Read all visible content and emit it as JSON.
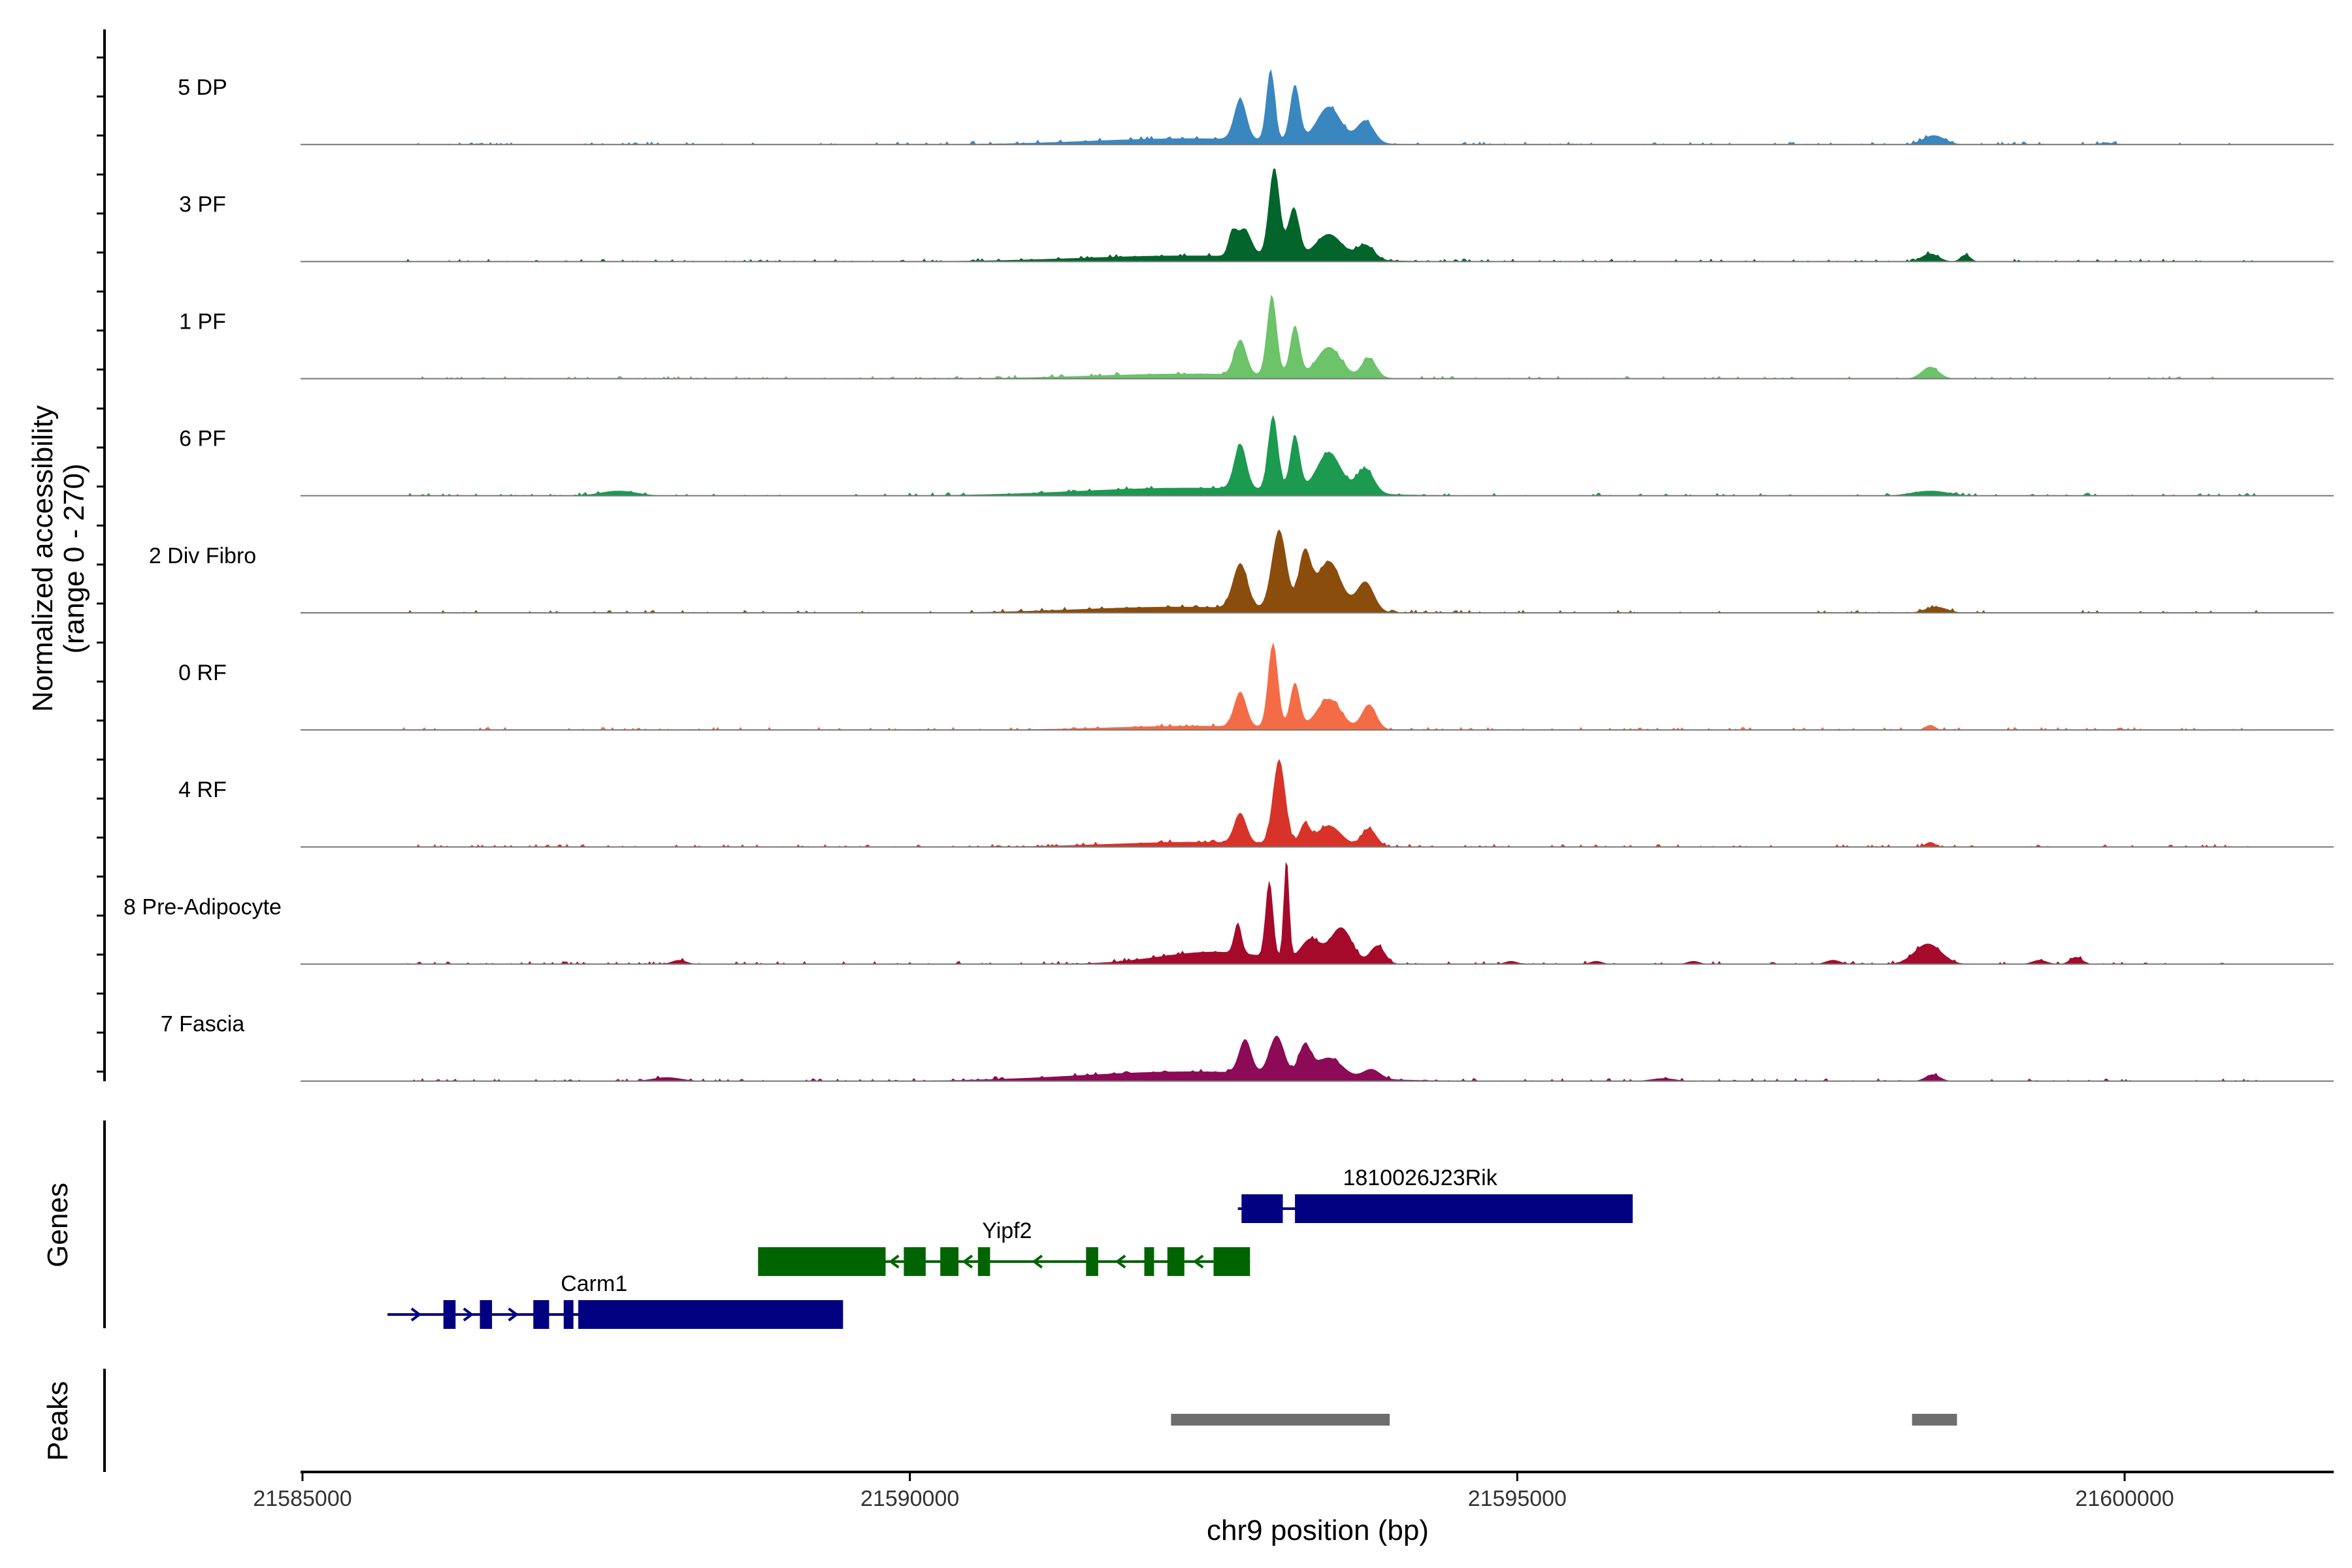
{
  "chart_data": {
    "type": "area",
    "title": "",
    "xlabel": "chr9 position (bp)",
    "ylabel": "Normalized accessibility",
    "ylabel_sub": "(range 0 - 270)",
    "ylim": [
      0,
      270
    ],
    "xlim": [
      21585000,
      21602000
    ],
    "xticks": [
      21585000,
      21590000,
      21595000,
      21600000
    ],
    "xtick_labels": [
      "21585000",
      "21590000",
      "21595000",
      "21600000"
    ],
    "tracks": [
      {
        "name": "5 DP",
        "color": "#3A87C0",
        "scale": 0.9,
        "peaks": [
          [
            21592300,
            800,
            0.06
          ],
          [
            21592720,
            50,
            0.4
          ],
          [
            21592970,
            35,
            0.7
          ],
          [
            21593170,
            40,
            0.55
          ],
          [
            21593450,
            100,
            0.35
          ],
          [
            21593750,
            70,
            0.22
          ],
          [
            21598430,
            90,
            0.09
          ],
          [
            21599850,
            50,
            0.02
          ]
        ]
      },
      {
        "name": "3 PF",
        "color": "#03652B",
        "scale": 0.88,
        "peaks": [
          [
            21592300,
            900,
            0.06
          ],
          [
            21592650,
            30,
            0.2
          ],
          [
            21592750,
            60,
            0.28
          ],
          [
            21593000,
            45,
            0.9
          ],
          [
            21593160,
            45,
            0.5
          ],
          [
            21593450,
            110,
            0.25
          ],
          [
            21593750,
            70,
            0.15
          ],
          [
            21598400,
            70,
            0.08
          ],
          [
            21598690,
            40,
            0.07
          ]
        ]
      },
      {
        "name": "1 PF",
        "color": "#6CC36A",
        "scale": 0.88,
        "peaks": [
          [
            21592300,
            800,
            0.05
          ],
          [
            21592720,
            50,
            0.35
          ],
          [
            21592980,
            40,
            0.8
          ],
          [
            21593170,
            40,
            0.5
          ],
          [
            21593450,
            100,
            0.3
          ],
          [
            21593780,
            60,
            0.2
          ],
          [
            21598400,
            70,
            0.12
          ]
        ]
      },
      {
        "name": "6 PF",
        "color": "#1B9A50",
        "scale": 0.88,
        "peaks": [
          [
            21592300,
            900,
            0.08
          ],
          [
            21592720,
            50,
            0.45
          ],
          [
            21592990,
            40,
            0.75
          ],
          [
            21593170,
            40,
            0.55
          ],
          [
            21593450,
            100,
            0.4
          ],
          [
            21593750,
            70,
            0.25
          ],
          [
            21587600,
            150,
            0.05
          ],
          [
            21598400,
            150,
            0.05
          ]
        ]
      },
      {
        "name": "2 Div Fibro",
        "color": "#8B4D0C",
        "scale": 0.88,
        "peaks": [
          [
            21592200,
            800,
            0.06
          ],
          [
            21592720,
            60,
            0.45
          ],
          [
            21593040,
            60,
            0.8
          ],
          [
            21593250,
            50,
            0.55
          ],
          [
            21593450,
            100,
            0.5
          ],
          [
            21593750,
            70,
            0.3
          ],
          [
            21598450,
            90,
            0.06
          ]
        ]
      },
      {
        "name": "0 RF",
        "color": "#F46C45",
        "scale": 0.88,
        "peaks": [
          [
            21592350,
            700,
            0.04
          ],
          [
            21592720,
            50,
            0.35
          ],
          [
            21592990,
            40,
            0.85
          ],
          [
            21593170,
            40,
            0.45
          ],
          [
            21593450,
            100,
            0.3
          ],
          [
            21593780,
            60,
            0.25
          ],
          [
            21598400,
            40,
            0.05
          ]
        ]
      },
      {
        "name": "4 RF",
        "color": "#D83328",
        "scale": 0.88,
        "peaks": [
          [
            21592350,
            700,
            0.05
          ],
          [
            21592720,
            50,
            0.3
          ],
          [
            21593040,
            50,
            0.85
          ],
          [
            21593250,
            40,
            0.2
          ],
          [
            21593450,
            100,
            0.2
          ],
          [
            21593780,
            60,
            0.18
          ],
          [
            21598400,
            40,
            0.05
          ]
        ]
      },
      {
        "name": "8 Pre-Adipocyte",
        "color": "#A60A2A",
        "scale": 0.9,
        "peaks": [
          [
            21592500,
            450,
            0.12
          ],
          [
            21592700,
            30,
            0.3
          ],
          [
            21592960,
            30,
            0.75
          ],
          [
            21593100,
            22,
            1.0
          ],
          [
            21593300,
            80,
            0.22
          ],
          [
            21593550,
            90,
            0.35
          ],
          [
            21593850,
            60,
            0.18
          ],
          [
            21598380,
            110,
            0.2
          ],
          [
            21585700,
            25,
            0.05
          ],
          [
            21588100,
            60,
            0.04
          ],
          [
            21599600,
            50,
            0.07
          ],
          [
            21599300,
            60,
            0.04
          ],
          [
            21597600,
            60,
            0.04
          ],
          [
            21596450,
            50,
            0.03
          ],
          [
            21595650,
            50,
            0.03
          ],
          [
            21594950,
            50,
            0.03
          ]
        ]
      },
      {
        "name": "7 Fascia",
        "color": "#8C0A56",
        "scale": 0.85,
        "peaks": [
          [
            21592300,
            900,
            0.1
          ],
          [
            21592760,
            50,
            0.35
          ],
          [
            21593020,
            60,
            0.4
          ],
          [
            21593250,
            50,
            0.3
          ],
          [
            21593450,
            110,
            0.2
          ],
          [
            21593800,
            70,
            0.1
          ],
          [
            21598420,
            60,
            0.07
          ],
          [
            21588000,
            120,
            0.04
          ],
          [
            21596200,
            100,
            0.03
          ]
        ]
      }
    ],
    "genes": [
      {
        "name": "Carm1",
        "color": "#000080",
        "strand": "+",
        "start": 21585700,
        "end": 21589450,
        "exons": [
          [
            21586160,
            21586260
          ],
          [
            21586460,
            21586560
          ],
          [
            21586900,
            21587030
          ],
          [
            21587150,
            21587230
          ],
          [
            21587270,
            21589450
          ]
        ],
        "label_pos": 21587400,
        "row": 3
      },
      {
        "name": "Yipf2",
        "color": "#006400",
        "strand": "-",
        "start": 21588750,
        "end": 21592800,
        "exons": [
          [
            21588750,
            21589800
          ],
          [
            21589950,
            21590130
          ],
          [
            21590250,
            21590400
          ],
          [
            21590560,
            21590660
          ],
          [
            21591450,
            21591550
          ],
          [
            21591930,
            21592010
          ],
          [
            21592120,
            21592260
          ],
          [
            21592500,
            21592800
          ]
        ],
        "label_pos": 21590800,
        "row": 2
      },
      {
        "name": "1810026J23Rik",
        "color": "#000080",
        "strand": "+",
        "start": 21592700,
        "end": 21595950,
        "exons": [
          [
            21592730,
            21593070
          ],
          [
            21593170,
            21595950
          ]
        ],
        "label_pos": 21594200,
        "row": 1
      }
    ],
    "peaks_track": [
      [
        21592150,
        21593950
      ],
      [
        21598250,
        21598620
      ]
    ],
    "genes_label": "Genes",
    "peaks_label": "Peaks"
  }
}
